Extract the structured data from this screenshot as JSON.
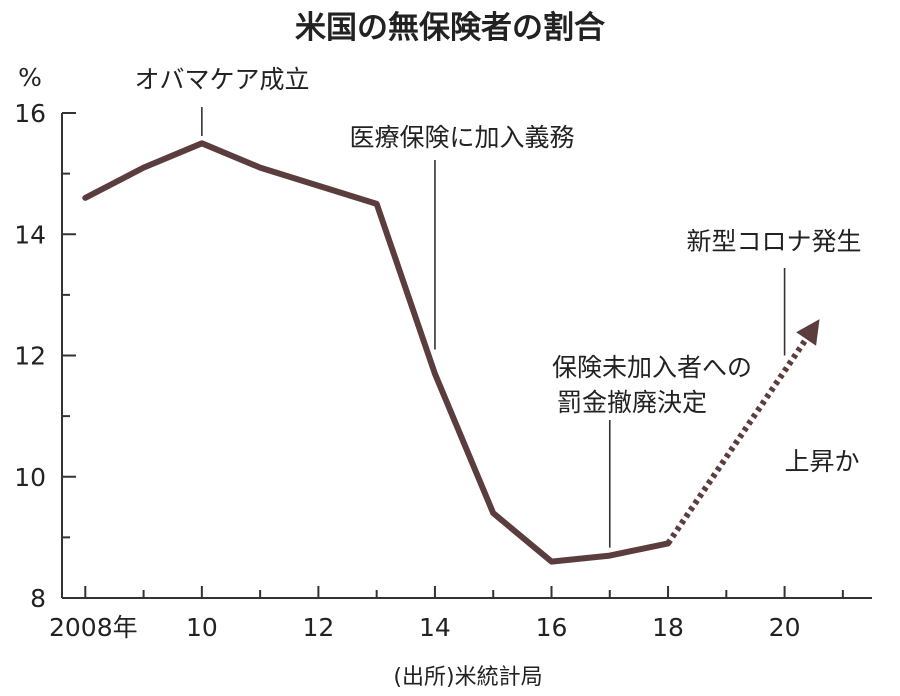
{
  "chart_data": {
    "type": "line",
    "title": "米国の無保険者の割合",
    "ylabel": "%",
    "source": "(出所)米統計局",
    "ylim": [
      8,
      16
    ],
    "xlim": [
      2008,
      2021.5
    ],
    "yticks": [
      8,
      10,
      12,
      14,
      16
    ],
    "ytick_labels": [
      "8",
      "10",
      "12",
      "14",
      "16"
    ],
    "xticks": [
      2008,
      2010,
      2012,
      2014,
      2016,
      2018,
      2020
    ],
    "xtick_labels": [
      "2008年",
      "10",
      "12",
      "14",
      "16",
      "18",
      "20"
    ],
    "colors": {
      "line": "#5b3d3e",
      "axis": "#333333",
      "text": "#222222"
    },
    "series": [
      {
        "style": "solid",
        "x": [
          2008,
          2009,
          2010,
          2011,
          2012,
          2013,
          2014,
          2015,
          2016,
          2017,
          2018
        ],
        "y": [
          14.6,
          15.1,
          15.5,
          15.1,
          14.8,
          14.5,
          11.7,
          9.4,
          8.6,
          8.7,
          8.9
        ]
      },
      {
        "style": "dotted-arrow",
        "x": [
          2018,
          2020.6
        ],
        "y": [
          8.9,
          12.6
        ]
      }
    ],
    "annotations": [
      {
        "text": "オバマケア成立",
        "x": 2010,
        "y": 15.5
      },
      {
        "text": "医療保険に加入義務",
        "x": 2014,
        "y": 12.1
      },
      {
        "text": "保険未加入者への",
        "x": 2017,
        "y": 8.7
      },
      {
        "text": "罰金撤廃決定",
        "x": 2017,
        "y": 8.7
      },
      {
        "text": "新型コロナ発生",
        "x": 2020,
        "y": 12.0
      },
      {
        "text": "上昇か",
        "x": 2019.5,
        "y": 10.2
      }
    ]
  }
}
